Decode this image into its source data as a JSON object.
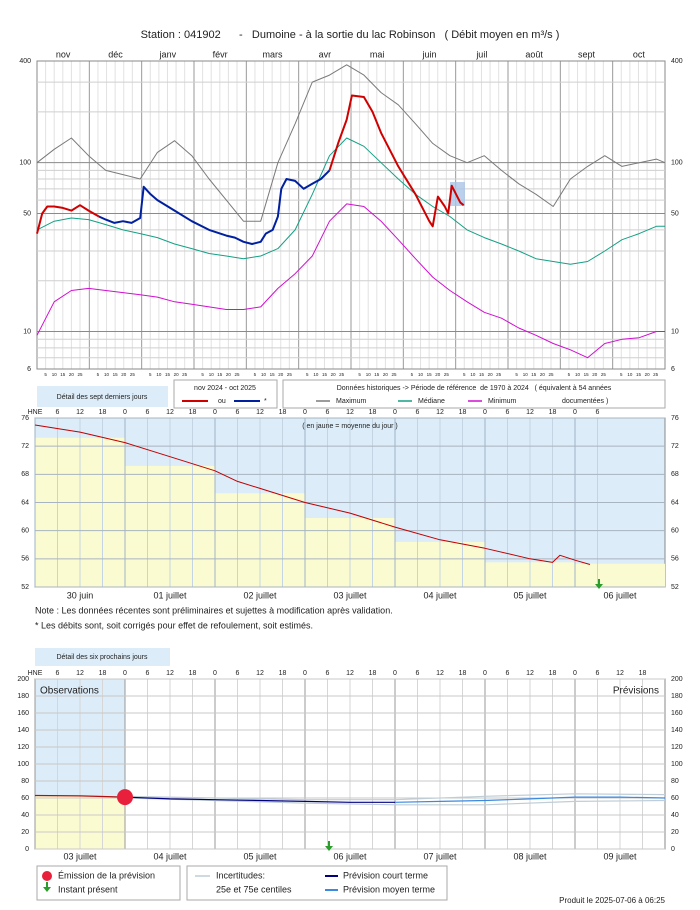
{
  "chart_data": [
    {
      "type": "line",
      "title": "Station : 041902      -   Dumoine - à la sortie du lac Robinson   ( Débit moyen en m³/s )",
      "log_scale": true,
      "categories": [
        "nov",
        "déc",
        "janv",
        "févr",
        "mars",
        "avr",
        "mai",
        "juin",
        "juil",
        "août",
        "sept",
        "oct"
      ],
      "day_ticks": [
        5,
        10,
        15,
        20,
        25
      ],
      "xlim": [
        0,
        365
      ],
      "ylim": [
        6,
        400
      ],
      "yticks": [
        6,
        10,
        50,
        100,
        400
      ],
      "yminor": [
        7,
        8,
        9,
        20,
        30,
        40,
        60,
        70,
        80,
        90,
        200,
        300
      ],
      "detail_label": "Détail des sept derniers jours",
      "period_label": "nov 2024 - oct 2025",
      "history_label": "Données historiques -> Période de référence  de 1970 à 2024   ( équivalent à 54 années",
      "history_label_2": "documentées )",
      "series": [
        {
          "name": "Maximum",
          "color": "#7a7a7a",
          "x": [
            0,
            10,
            20,
            30,
            40,
            50,
            60,
            70,
            80,
            90,
            100,
            110,
            120,
            130,
            140,
            150,
            160,
            170,
            180,
            190,
            200,
            210,
            220,
            230,
            240,
            250,
            260,
            270,
            280,
            290,
            300,
            310,
            320,
            330,
            340,
            350,
            360,
            365
          ],
          "values": [
            100,
            120,
            140,
            110,
            90,
            85,
            80,
            115,
            135,
            110,
            80,
            60,
            45,
            45,
            100,
            170,
            300,
            330,
            380,
            330,
            260,
            220,
            170,
            130,
            110,
            100,
            110,
            90,
            75,
            65,
            55,
            80,
            95,
            110,
            95,
            100,
            105,
            100
          ]
        },
        {
          "name": "Médiane",
          "color": "#14a085",
          "x": [
            0,
            10,
            20,
            30,
            40,
            50,
            60,
            70,
            80,
            90,
            100,
            110,
            120,
            130,
            140,
            150,
            160,
            170,
            180,
            190,
            200,
            210,
            220,
            230,
            240,
            250,
            260,
            270,
            280,
            290,
            300,
            310,
            320,
            330,
            340,
            350,
            360,
            365
          ],
          "values": [
            40,
            45,
            47,
            46,
            43,
            40,
            38,
            36,
            33,
            31,
            29,
            28,
            27,
            28,
            31,
            40,
            65,
            110,
            140,
            125,
            100,
            80,
            65,
            55,
            48,
            40,
            36,
            33,
            30,
            27,
            26,
            25,
            26,
            30,
            35,
            38,
            42,
            42
          ]
        },
        {
          "name": "Minimum",
          "color": "#d010d0",
          "x": [
            0,
            10,
            20,
            30,
            40,
            50,
            60,
            70,
            80,
            90,
            100,
            110,
            120,
            130,
            140,
            150,
            160,
            170,
            180,
            190,
            200,
            210,
            220,
            230,
            240,
            250,
            260,
            270,
            280,
            290,
            300,
            310,
            320,
            330,
            340,
            350,
            360,
            365
          ],
          "values": [
            9.5,
            15,
            17.5,
            18,
            17.5,
            17,
            16.5,
            16,
            15,
            14.5,
            14,
            13.5,
            13.5,
            14,
            18,
            22,
            28,
            45,
            57,
            55,
            45,
            35,
            27,
            21,
            17.5,
            15,
            13,
            12,
            10.5,
            9.5,
            8.5,
            7.8,
            7,
            8.5,
            9,
            9.2,
            10,
            10
          ]
        },
        {
          "name": "ou",
          "color": "#d00000",
          "x": [
            0,
            3,
            6,
            10,
            15,
            20,
            25,
            30,
            36,
            100,
            170,
            175,
            180,
            183,
            190,
            195,
            200,
            210,
            220,
            228,
            230,
            233,
            237,
            239,
            241,
            246,
            248
          ],
          "values": [
            38,
            50,
            55,
            55,
            54,
            52,
            56,
            52,
            48,
            null,
            90,
            130,
            180,
            250,
            245,
            200,
            150,
            95,
            65,
            45,
            42,
            63,
            55,
            50,
            73,
            58,
            56
          ]
        },
        {
          "name": "*",
          "color": "#0020a0",
          "x": [
            36,
            40,
            45,
            50,
            55,
            60,
            62,
            66,
            70,
            80,
            90,
            100,
            110,
            115,
            120,
            125,
            130,
            133,
            137,
            140,
            142,
            145,
            150,
            155,
            160,
            165,
            170
          ],
          "values": [
            48,
            46,
            44,
            45,
            44,
            47,
            72,
            65,
            60,
            52,
            45,
            40,
            37,
            36,
            34,
            33,
            34,
            38,
            40,
            48,
            70,
            80,
            78,
            70,
            75,
            80,
            90
          ]
        }
      ]
    },
    {
      "type": "line",
      "subtitle": "( en jaune = moyenne du jour )",
      "hour_labels": [
        "HNE",
        "6",
        "12",
        "18",
        "0",
        "6",
        "12",
        "18",
        "0",
        "6",
        "12",
        "18",
        "0",
        "6",
        "12",
        "18",
        "0",
        "6",
        "12",
        "18",
        "0",
        "6",
        "12",
        "18",
        "0",
        "6"
      ],
      "categories": [
        "30 juin",
        "01 juillet",
        "02 juillet",
        "03 juillet",
        "04 juillet",
        "05 juillet",
        "06 juillet"
      ],
      "daily_means": [
        73.2,
        69.2,
        65.3,
        61.8,
        58.4,
        55.5,
        55.3
      ],
      "xlim": [
        0,
        168
      ],
      "ylim": [
        52,
        76
      ],
      "yticks": [
        52,
        56,
        60,
        64,
        68,
        72,
        76
      ],
      "instant_present_x": 150.4,
      "series": [
        {
          "name": "ou",
          "color": "#c00000",
          "x": [
            0,
            12,
            24,
            36,
            48,
            54,
            60,
            72,
            84,
            96,
            108,
            120,
            132,
            138,
            140,
            144,
            148
          ],
          "values": [
            75,
            74,
            72.5,
            70.5,
            68.5,
            67,
            66,
            64,
            62.5,
            60.5,
            58.7,
            57.5,
            56,
            55.5,
            56.5,
            55.8,
            55.2
          ]
        }
      ],
      "notes": [
        "Note : Les données récentes sont préliminaires et sujettes à modification après validation.",
        "* Les débits sont, soit corrigés pour effet de refoulement, soit estimés."
      ],
      "next_label": "Détail des six prochains jours"
    },
    {
      "type": "line",
      "hour_labels": [
        "HNE",
        "6",
        "12",
        "18",
        "0",
        "6",
        "12",
        "18",
        "0",
        "6",
        "12",
        "18",
        "0",
        "6",
        "12",
        "18",
        "0",
        "6",
        "12",
        "18",
        "0",
        "6",
        "12",
        "18",
        "0",
        "6",
        "12",
        "18"
      ],
      "categories": [
        "03 juillet",
        "04 juillet",
        "05 juillet",
        "06 juillet",
        "07 juillet",
        "08 juillet",
        "09 juillet"
      ],
      "xlim": [
        0,
        168
      ],
      "ylim": [
        0,
        200
      ],
      "yticks": [
        0,
        20,
        40,
        60,
        80,
        100,
        120,
        140,
        160,
        180,
        200
      ],
      "forecast_label": "Prévisions",
      "emission": {
        "name": "Émission de la prévision",
        "color": "#e8203c",
        "x": 24,
        "value": 61
      },
      "instant": {
        "name": "Instant présent",
        "color": "#2a9d2a",
        "x": 78.4
      },
      "uncertainty": {
        "title": "Incertitudes:",
        "name": "25e et 75e centiles",
        "color": "#bfcdd6",
        "x": [
          24,
          48,
          72,
          96,
          120,
          144,
          168
        ],
        "upper": [
          62,
          60,
          58,
          58,
          62,
          65,
          64
        ],
        "lower": [
          60,
          57,
          54,
          52,
          52,
          56,
          57
        ]
      },
      "series": [
        {
          "name": "Observations",
          "color": "#b01010",
          "x": [
            0,
            12,
            24
          ],
          "values": [
            63,
            62.5,
            61
          ]
        },
        {
          "name": "Prévision court terme",
          "color": "#000080",
          "x": [
            24,
            36,
            48,
            60,
            72,
            84,
            96
          ],
          "values": [
            61,
            59,
            58,
            57,
            56,
            55,
            55
          ]
        },
        {
          "name": "Prévision moyen terme",
          "color": "#3a8ae0",
          "x": [
            96,
            108,
            120,
            132,
            144,
            156,
            168
          ],
          "values": [
            55,
            56,
            57,
            59,
            61,
            61,
            60
          ]
        }
      ],
      "footer": "Produit le 2025-07-06 à 06:25"
    }
  ]
}
